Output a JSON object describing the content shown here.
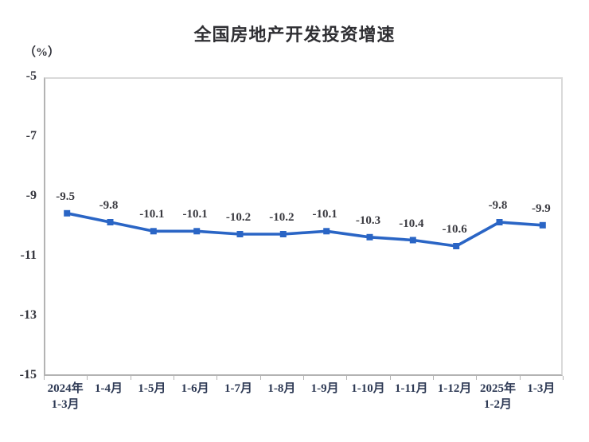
{
  "title": "全国房地产开发投资增速",
  "unit_label": "（%）",
  "chart_data": {
    "type": "line",
    "title": "全国房地产开发投资增速",
    "ylabel": "（%）",
    "xlabel": "",
    "categories": [
      [
        "2024年",
        "1-3月"
      ],
      [
        "1-4月"
      ],
      [
        "1-5月"
      ],
      [
        "1-6月"
      ],
      [
        "1-7月"
      ],
      [
        "1-8月"
      ],
      [
        "1-9月"
      ],
      [
        "1-10月"
      ],
      [
        "1-11月"
      ],
      [
        "1-12月"
      ],
      [
        "2025年",
        "1-2月"
      ],
      [
        "1-3月"
      ]
    ],
    "values": [
      -9.5,
      -9.8,
      -10.1,
      -10.1,
      -10.2,
      -10.2,
      -10.1,
      -10.3,
      -10.4,
      -10.6,
      -9.8,
      -9.9
    ],
    "data_labels": [
      "-9.5",
      "-9.8",
      "-10.1",
      "-10.1",
      "-10.2",
      "-10.2",
      "-10.1",
      "-10.3",
      "-10.4",
      "-10.6",
      "-9.8",
      "-9.9"
    ],
    "ylim": [
      -15,
      -5
    ],
    "yticks": [
      "-5",
      "-7",
      "-9",
      "-11",
      "-13",
      "-15"
    ],
    "ytick_values": [
      -5,
      -7,
      -9,
      -11,
      -13,
      -15
    ],
    "grid": false,
    "legend_position": "none",
    "line_color": "#2a65c5",
    "marker": "square",
    "marker_color": "#2a65c5"
  }
}
